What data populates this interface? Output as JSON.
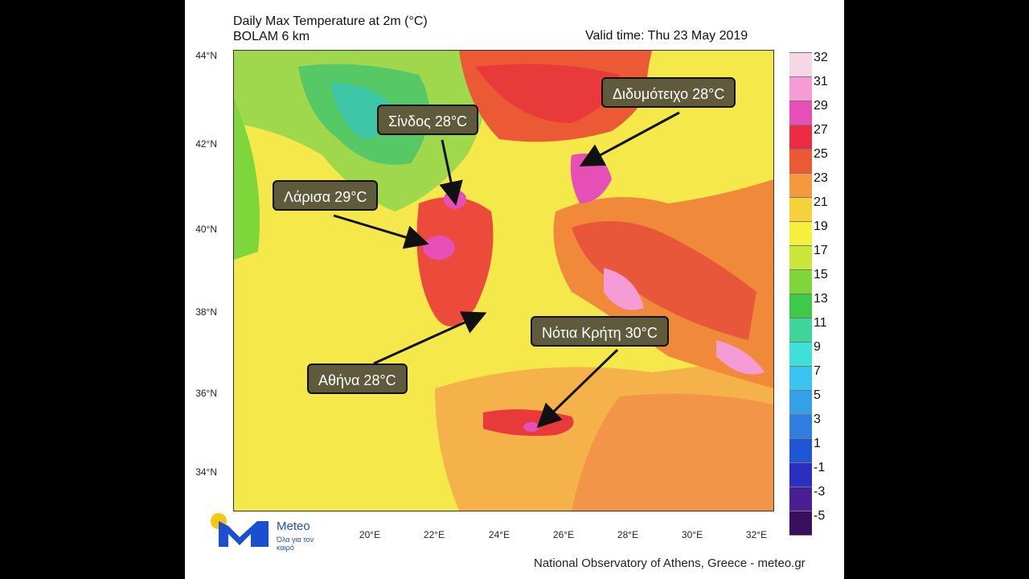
{
  "title": {
    "line1": "Daily Max Temperature at 2m (°C)",
    "line2": "BOLAM 6 km",
    "valid_time": "Valid time: Thu 23 May 2019"
  },
  "latitudes": [
    "44°N",
    "42°N",
    "40°N",
    "38°N",
    "36°N",
    "34°N"
  ],
  "longitudes": [
    "20°E",
    "22°E",
    "24°E",
    "26°E",
    "28°E",
    "30°E",
    "32°E"
  ],
  "colorbar": {
    "labels": [
      "32",
      "31",
      "29",
      "27",
      "25",
      "23",
      "21",
      "19",
      "17",
      "15",
      "13",
      "11",
      "9",
      "7",
      "5",
      "3",
      "1",
      "-1",
      "-3",
      "-5"
    ],
    "colors": [
      "#ffffff",
      "#f7d6e6",
      "#f59bd6",
      "#e64fb6",
      "#ec2c44",
      "#ec5a35",
      "#f59a3c",
      "#f5d23a",
      "#f5f03c",
      "#cbe63a",
      "#7ed63a",
      "#3fc94a",
      "#3fd49c",
      "#3fe0d8",
      "#39c3ee",
      "#34a0e8",
      "#2f7ee0",
      "#1f56d6",
      "#2a2fbf",
      "#4a1f96",
      "#3a0f5e"
    ]
  },
  "callouts": [
    {
      "text": "Σίνδος 28°C"
    },
    {
      "text": "Λάρισα 29°C"
    },
    {
      "text": "Διδυμότειχο 28°C"
    },
    {
      "text": "Νότια Κρήτη 30°C"
    },
    {
      "text": "Αθήνα 28°C"
    }
  ],
  "logo": {
    "name": "Meteo",
    "tagline": "Όλα για τον καιρό"
  },
  "footer": "National Observatory of Athens, Greece - meteo.gr"
}
